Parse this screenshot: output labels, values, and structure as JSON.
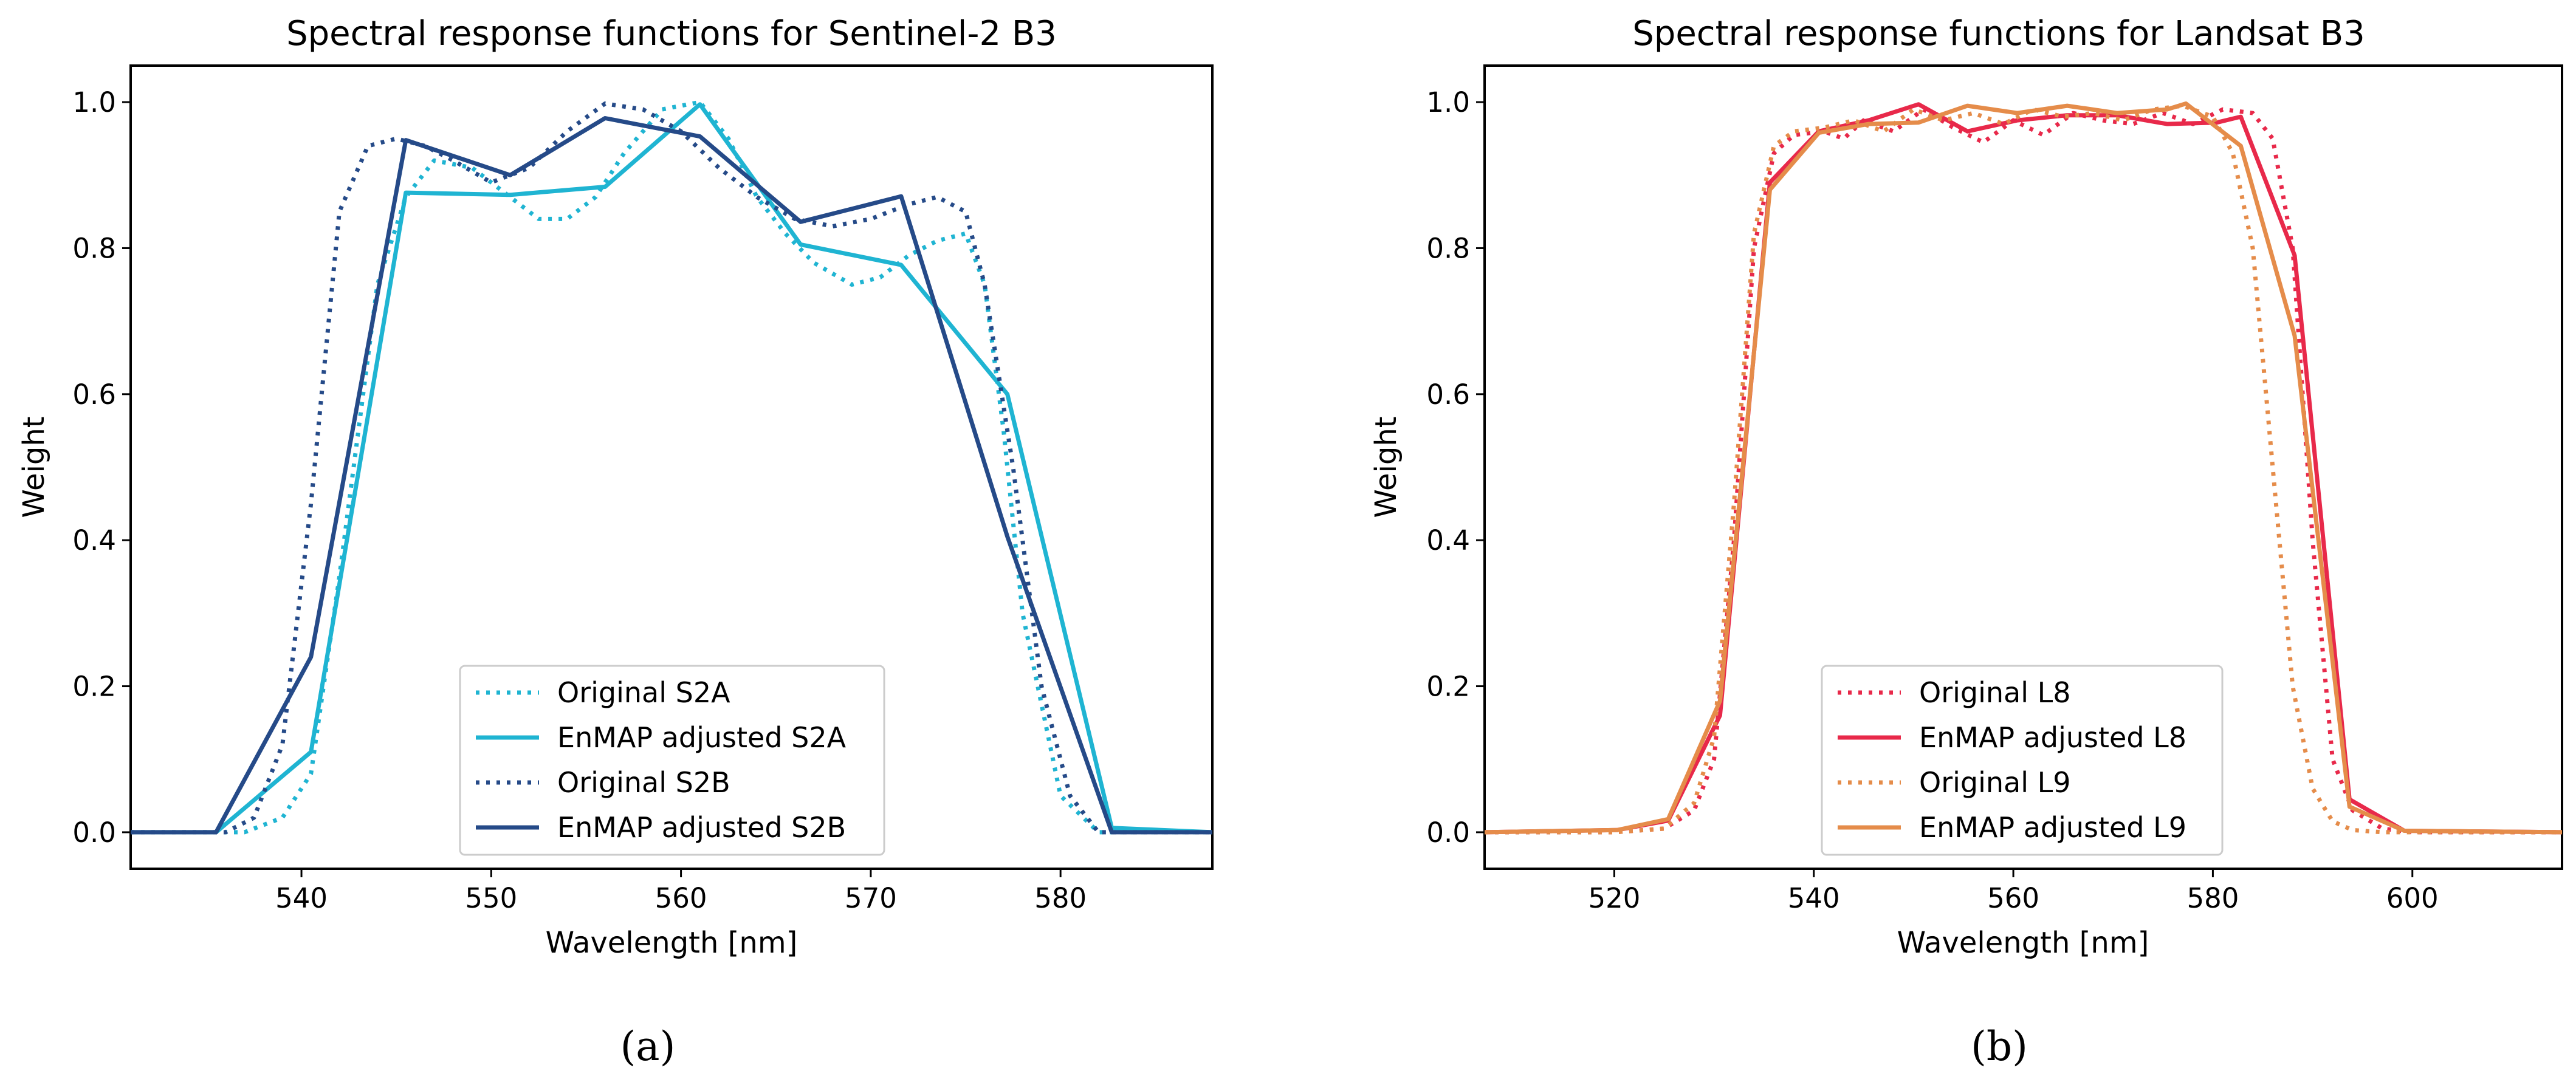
{
  "chart_data": [
    {
      "type": "line",
      "title": "Spectral response functions for Sentinel-2 B3",
      "xlabel": "Wavelength [nm]",
      "ylabel": "Weight",
      "xlim": [
        531,
        588
      ],
      "ylim": [
        -0.05,
        1.05
      ],
      "xticks": [
        540,
        550,
        560,
        570,
        580
      ],
      "yticks": [
        0.0,
        0.2,
        0.4,
        0.6,
        0.8,
        1.0
      ],
      "xtick_labels": [
        "540",
        "550",
        "560",
        "570",
        "580"
      ],
      "ytick_labels": [
        "0.0",
        "0.2",
        "0.4",
        "0.6",
        "0.8",
        "1.0"
      ],
      "legend_position": "lower-center",
      "caption": "(a)",
      "series": [
        {
          "name": "Original S2A",
          "color": "#1fb4d2",
          "style": "dotted",
          "x": [
            531,
            537,
            539,
            540.5,
            542,
            544,
            545.5,
            547,
            549,
            551,
            552.5,
            554,
            555.5,
            557,
            559,
            561,
            562.5,
            564,
            565.5,
            567,
            569,
            570.5,
            572,
            573.5,
            575,
            576,
            577,
            578,
            580,
            582,
            588
          ],
          "y": [
            0,
            0,
            0.02,
            0.08,
            0.35,
            0.75,
            0.87,
            0.92,
            0.91,
            0.87,
            0.84,
            0.84,
            0.87,
            0.93,
            0.99,
            1.0,
            0.95,
            0.87,
            0.82,
            0.78,
            0.75,
            0.76,
            0.79,
            0.81,
            0.82,
            0.75,
            0.55,
            0.3,
            0.05,
            0.0,
            0.0
          ]
        },
        {
          "name": "EnMAP adjusted S2A",
          "color": "#1fb4d2",
          "style": "solid",
          "x": [
            531,
            535.5,
            540.5,
            545.5,
            551,
            556,
            561,
            566.3,
            571.6,
            577.2,
            582.7,
            588
          ],
          "y": [
            0,
            0,
            0.11,
            0.876,
            0.873,
            0.884,
            0.997,
            0.805,
            0.777,
            0.6,
            0.006,
            0.0
          ]
        },
        {
          "name": "Original S2B",
          "color": "#254a88",
          "style": "dotted",
          "x": [
            531,
            536,
            537.5,
            539,
            540.5,
            542,
            543.5,
            545,
            546.5,
            548,
            550,
            552,
            554,
            556,
            558,
            560,
            562,
            564,
            566,
            568,
            570,
            572,
            573.5,
            575,
            576,
            577.5,
            579,
            580.5,
            582,
            588
          ],
          "y": [
            0,
            0,
            0.02,
            0.12,
            0.45,
            0.85,
            0.94,
            0.95,
            0.94,
            0.92,
            0.89,
            0.91,
            0.96,
            0.998,
            0.99,
            0.96,
            0.91,
            0.87,
            0.84,
            0.83,
            0.84,
            0.86,
            0.87,
            0.85,
            0.75,
            0.5,
            0.2,
            0.05,
            0.0,
            0.0
          ]
        },
        {
          "name": "EnMAP adjusted S2B",
          "color": "#254a88",
          "style": "solid",
          "x": [
            531,
            535.5,
            540.5,
            545.5,
            551,
            556,
            561,
            566.3,
            571.6,
            577.2,
            582.7,
            588
          ],
          "y": [
            0,
            0,
            0.24,
            0.948,
            0.9,
            0.978,
            0.953,
            0.836,
            0.871,
            0.405,
            0.0,
            0.0
          ]
        }
      ]
    },
    {
      "type": "line",
      "title": "Spectral response functions for Landsat B3",
      "xlabel": "Wavelength [nm]",
      "ylabel": "Weight",
      "xlim": [
        507,
        615
      ],
      "ylim": [
        -0.05,
        1.05
      ],
      "xticks": [
        520,
        540,
        560,
        580,
        600
      ],
      "yticks": [
        0.0,
        0.2,
        0.4,
        0.6,
        0.8,
        1.0
      ],
      "xtick_labels": [
        "520",
        "540",
        "560",
        "580",
        "600"
      ],
      "ytick_labels": [
        "0.0",
        "0.2",
        "0.4",
        "0.6",
        "0.8",
        "1.0"
      ],
      "legend_position": "lower-center",
      "caption": "(b)",
      "series": [
        {
          "name": "Original L8",
          "color": "#e8294a",
          "style": "dotted",
          "x": [
            507,
            520,
            525,
            528,
            530,
            532,
            534,
            536,
            538,
            541,
            543,
            545,
            548,
            551,
            554,
            557,
            560,
            563,
            566,
            569,
            572,
            575,
            578,
            581,
            584,
            586,
            588,
            590,
            592,
            594,
            597,
            600,
            615
          ],
          "y": [
            0,
            0,
            0.005,
            0.03,
            0.1,
            0.4,
            0.8,
            0.93,
            0.955,
            0.96,
            0.95,
            0.975,
            0.96,
            0.99,
            0.965,
            0.945,
            0.975,
            0.955,
            0.985,
            0.975,
            0.97,
            0.985,
            0.97,
            0.99,
            0.985,
            0.95,
            0.8,
            0.4,
            0.1,
            0.03,
            0.005,
            0,
            0
          ]
        },
        {
          "name": "EnMAP adjusted L8",
          "color": "#e8294a",
          "style": "solid",
          "x": [
            507,
            520.3,
            525.4,
            530.6,
            535.6,
            540.5,
            545.5,
            550.5,
            555.4,
            560.4,
            565.4,
            570.4,
            575.4,
            580.4,
            582.8,
            588.2,
            593.7,
            599.2,
            615
          ],
          "y": [
            0,
            0.003,
            0.016,
            0.16,
            0.89,
            0.96,
            0.975,
            0.997,
            0.96,
            0.975,
            0.982,
            0.982,
            0.97,
            0.972,
            0.98,
            0.79,
            0.045,
            0.002,
            0
          ]
        },
        {
          "name": "Original L9",
          "color": "#e58c4a",
          "style": "dotted",
          "x": [
            507,
            520,
            525,
            528,
            530,
            532,
            534,
            536,
            538,
            541,
            544,
            547,
            550,
            553,
            556,
            559,
            562,
            565,
            568,
            571,
            574,
            577,
            580,
            582,
            584,
            586,
            588,
            590,
            592,
            594,
            597,
            600,
            615
          ],
          "y": [
            0,
            0,
            0.005,
            0.04,
            0.13,
            0.45,
            0.82,
            0.94,
            0.96,
            0.965,
            0.975,
            0.96,
            0.99,
            0.975,
            0.985,
            0.97,
            0.99,
            0.98,
            0.985,
            0.975,
            0.99,
            0.995,
            0.98,
            0.93,
            0.8,
            0.5,
            0.2,
            0.06,
            0.015,
            0.003,
            0,
            0,
            0
          ]
        },
        {
          "name": "EnMAP adjusted L9",
          "color": "#e58c4a",
          "style": "solid",
          "x": [
            507,
            520.3,
            525.4,
            530.6,
            535.6,
            540.5,
            545.5,
            550.5,
            555.4,
            560.4,
            565.4,
            570.4,
            575.4,
            577.3,
            582.8,
            588.2,
            593.7,
            599.2,
            615
          ],
          "y": [
            0,
            0.003,
            0.018,
            0.18,
            0.88,
            0.958,
            0.97,
            0.972,
            0.995,
            0.985,
            0.995,
            0.985,
            0.99,
            0.998,
            0.94,
            0.68,
            0.035,
            0.002,
            0
          ]
        }
      ]
    }
  ]
}
